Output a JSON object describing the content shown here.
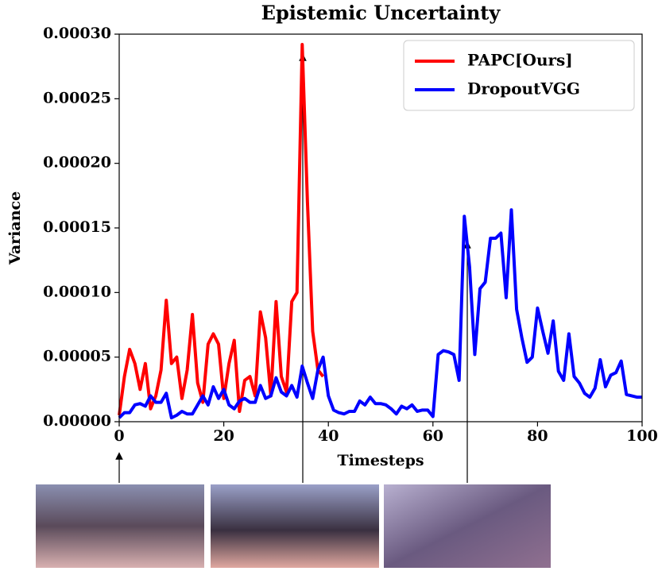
{
  "chart_data": {
    "type": "line",
    "title": "Epistemic Uncertainty",
    "x_label": "Timesteps",
    "y_label": "Variance",
    "x": [
      0,
      1,
      2,
      3,
      4,
      5,
      6,
      7,
      8,
      9,
      10,
      11,
      12,
      13,
      14,
      15,
      16,
      17,
      18,
      19,
      20,
      21,
      22,
      23,
      24,
      25,
      26,
      27,
      28,
      29,
      30,
      31,
      32,
      33,
      34,
      35,
      36,
      37,
      38,
      39,
      40,
      41,
      42,
      43,
      44,
      45,
      46,
      47,
      48,
      49,
      50,
      51,
      52,
      53,
      54,
      55,
      56,
      57,
      58,
      59,
      60,
      61,
      62,
      63,
      64,
      65,
      66,
      67,
      68,
      69,
      70,
      71,
      72,
      73,
      74,
      75,
      76,
      77,
      78,
      79,
      80,
      81,
      82,
      83,
      84,
      85,
      86,
      87,
      88,
      89,
      90,
      91,
      92,
      93,
      94,
      95,
      96,
      97,
      98,
      99,
      100
    ],
    "series": [
      {
        "name": "PAPC[Ours]",
        "color": "#ff0000",
        "values": [
          5e-06,
          3.5e-05,
          5.6e-05,
          4.5e-05,
          2.5e-05,
          4.5e-05,
          1e-05,
          2e-05,
          4e-05,
          9.4e-05,
          4.5e-05,
          5e-05,
          1.8e-05,
          4e-05,
          8.3e-05,
          3e-05,
          1.5e-05,
          6e-05,
          6.8e-05,
          6e-05,
          1.8e-05,
          4.5e-05,
          6.3e-05,
          8e-06,
          3.2e-05,
          3.5e-05,
          2e-05,
          8.5e-05,
          6.5e-05,
          2e-05,
          9.3e-05,
          3.5e-05,
          2.3e-05,
          9.3e-05,
          0.0001,
          0.000292,
          0.00017,
          7e-05,
          4e-05,
          3.5e-05,
          null,
          null,
          null,
          null,
          null,
          null,
          null,
          null,
          null,
          null,
          null,
          null,
          null,
          null,
          null,
          null,
          null,
          null,
          null,
          null,
          null,
          null,
          null,
          null,
          null,
          null,
          null,
          null,
          null,
          null,
          null,
          null,
          null,
          null,
          null,
          null,
          null,
          null,
          null,
          null,
          null,
          null,
          null,
          null,
          null,
          null,
          null,
          null,
          null,
          null,
          null,
          null,
          null,
          null,
          null,
          null,
          null,
          null,
          null,
          null,
          null
        ]
      },
      {
        "name": "DropoutVGG",
        "color": "#0000ff",
        "values": [
          3e-06,
          7e-06,
          7e-06,
          1.3e-05,
          1.4e-05,
          1.2e-05,
          2e-05,
          1.5e-05,
          1.5e-05,
          2.2e-05,
          3e-06,
          5e-06,
          8e-06,
          6e-06,
          6e-06,
          1.3e-05,
          2e-05,
          1.3e-05,
          2.7e-05,
          1.8e-05,
          2.5e-05,
          1.3e-05,
          1e-05,
          1.6e-05,
          1.8e-05,
          1.5e-05,
          1.5e-05,
          2.8e-05,
          1.8e-05,
          2e-05,
          3.4e-05,
          2.3e-05,
          2e-05,
          2.8e-05,
          1.9e-05,
          4.3e-05,
          3e-05,
          1.8e-05,
          4e-05,
          5e-05,
          2e-05,
          9e-06,
          7e-06,
          6e-06,
          8e-06,
          8e-06,
          1.6e-05,
          1.3e-05,
          1.9e-05,
          1.4e-05,
          1.4e-05,
          1.3e-05,
          1e-05,
          6e-06,
          1.2e-05,
          1e-05,
          1.3e-05,
          8e-06,
          9e-06,
          9e-06,
          4e-06,
          5.2e-05,
          5.5e-05,
          5.4e-05,
          5.2e-05,
          3.2e-05,
          0.000159,
          0.00012,
          5.2e-05,
          0.000103,
          0.000108,
          0.000142,
          0.000142,
          0.000146,
          9.6e-05,
          0.000164,
          8.7e-05,
          6.5e-05,
          4.6e-05,
          5e-05,
          8.8e-05,
          7e-05,
          5.3e-05,
          7.8e-05,
          3.9e-05,
          3.2e-05,
          6.8e-05,
          3.5e-05,
          3e-05,
          2.2e-05,
          1.9e-05,
          2.6e-05,
          4.8e-05,
          2.7e-05,
          3.6e-05,
          3.8e-05,
          4.7e-05,
          2.1e-05,
          2e-05,
          1.9e-05,
          1.9e-05
        ]
      }
    ],
    "xlim": [
      0,
      100
    ],
    "ylim": [
      0,
      0.0003
    ],
    "xticks": [
      0,
      20,
      40,
      60,
      80,
      100
    ],
    "yticks": [
      {
        "value": 0,
        "label": "0.00000"
      },
      {
        "value": 5e-05,
        "label": "0.00005"
      },
      {
        "value": 0.0001,
        "label": "0.00010"
      },
      {
        "value": 0.00015,
        "label": "0.00015"
      },
      {
        "value": 0.0002,
        "label": "0.00020"
      },
      {
        "value": 0.00025,
        "label": "0.00025"
      },
      {
        "value": 0.0003,
        "label": "0.00030"
      }
    ],
    "legend": "upper right",
    "grid": false
  }
}
